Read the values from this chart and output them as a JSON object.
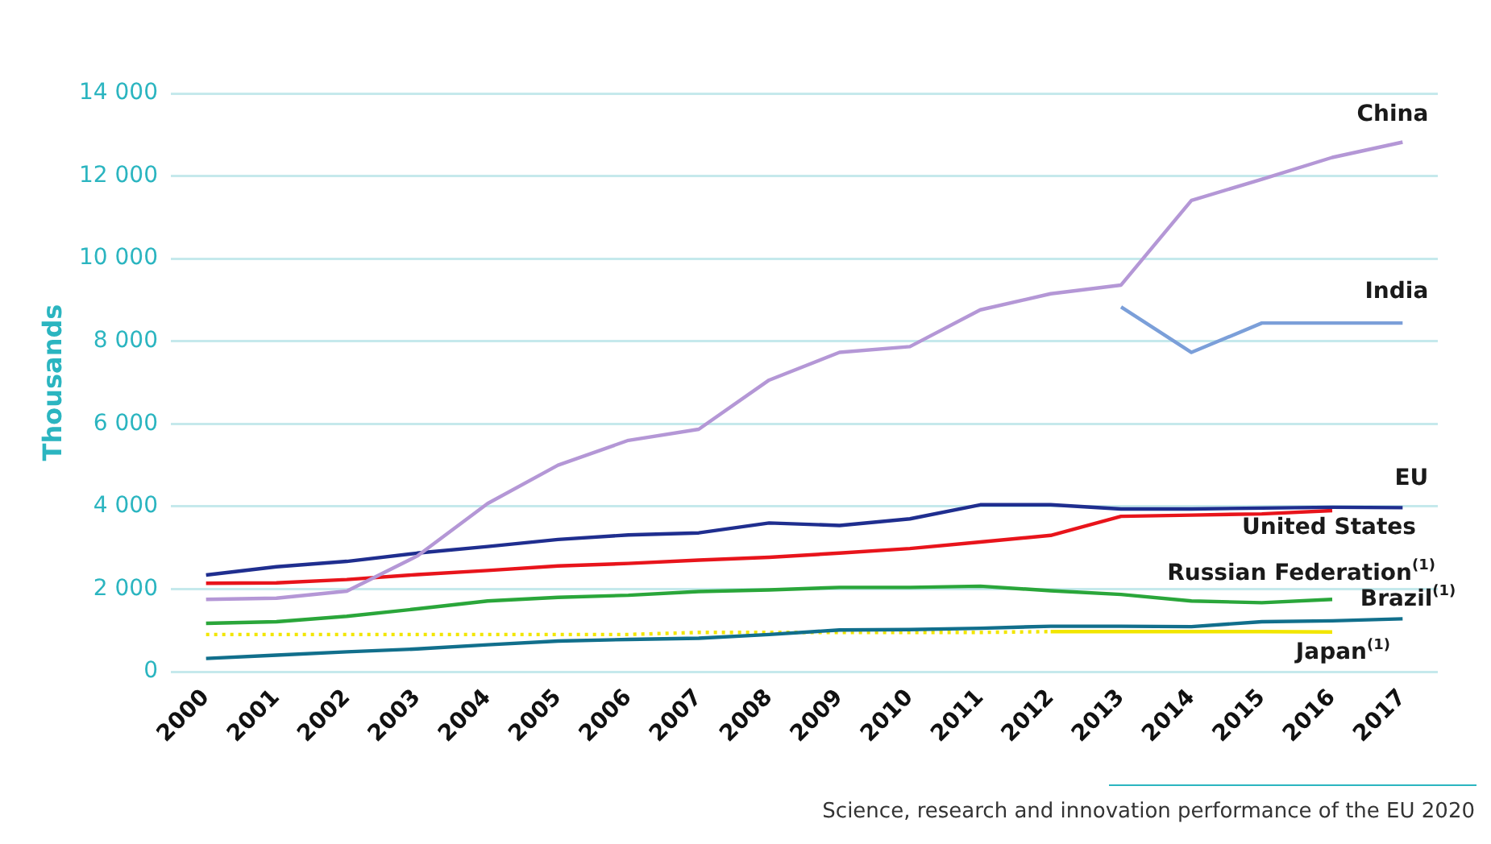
{
  "chart_data": {
    "type": "line",
    "ylabel": "Thousands",
    "categories": [
      "2000",
      "2001",
      "2002",
      "2003",
      "2004",
      "2005",
      "2006",
      "2007",
      "2008",
      "2009",
      "2010",
      "2011",
      "2012",
      "2013",
      "2014",
      "2015",
      "2016",
      "2017"
    ],
    "ylim": [
      0,
      14000
    ],
    "yticks": [
      0,
      {
        "value": 2000,
        "label": "2 000"
      },
      {
        "value": 4000,
        "label": "4 000"
      },
      {
        "value": 6000,
        "label": "6 000"
      },
      {
        "value": 8000,
        "label": "8 000"
      },
      {
        "value": 10000,
        "label": "10 000"
      },
      {
        "value": 12000,
        "label": "12 000"
      },
      {
        "value": 14000,
        "label": "14 000"
      }
    ],
    "grid": "y",
    "legend": false,
    "marker": "none",
    "line_style": "solid",
    "series": [
      {
        "name": "China",
        "color": "#b497d6",
        "values": [
          1750,
          1780,
          1950,
          2800,
          4070,
          5000,
          5600,
          5870,
          7060,
          7730,
          7870,
          8760,
          9150,
          9360,
          11410,
          11920,
          12450,
          12820
        ]
      },
      {
        "name": "India",
        "color": "#7b9fd9",
        "values": [
          null,
          null,
          null,
          null,
          null,
          null,
          null,
          null,
          null,
          null,
          null,
          null,
          null,
          8830,
          7730,
          8440,
          8440,
          8440
        ]
      },
      {
        "name": "EU",
        "color": "#1f2e8f",
        "values": [
          2340,
          2540,
          2670,
          2870,
          3030,
          3200,
          3310,
          3360,
          3600,
          3540,
          3700,
          4040,
          4040,
          3940,
          3940,
          3960,
          3980,
          3970
        ]
      },
      {
        "name": "United States",
        "color": "#e8141b",
        "values": [
          2140,
          2150,
          2230,
          2350,
          2450,
          2560,
          2620,
          2700,
          2770,
          2870,
          2980,
          3140,
          3300,
          3760,
          3790,
          3820,
          3900,
          null
        ]
      },
      {
        "name": "Russian Federation$^{(1)}$",
        "color": "#2aa63a",
        "values": [
          1170,
          1210,
          1340,
          1520,
          1710,
          1800,
          1850,
          1940,
          1980,
          2040,
          2040,
          2070,
          1960,
          1870,
          1710,
          1670,
          1750,
          null
        ]
      },
      {
        "name": "Brazil$^{(1)}$",
        "color": "#116f8c",
        "values": [
          320,
          400,
          480,
          550,
          650,
          740,
          780,
          810,
          900,
          1010,
          1020,
          1050,
          1100,
          1100,
          1090,
          1210,
          1230,
          1280
        ]
      },
      {
        "name": "Japan$^{(1)}$",
        "color": "#f2e600",
        "values": [
          null,
          null,
          null,
          null,
          null,
          null,
          null,
          null,
          null,
          null,
          null,
          null,
          970,
          970,
          970,
          970,
          960,
          null
        ]
      },
      {
        "color": "#f2e600",
        "line_style": "dotted",
        "values": [
          900,
          900,
          900,
          900,
          900,
          900,
          900,
          950,
          950,
          950,
          950,
          950,
          970,
          null,
          null,
          null,
          null,
          null
        ]
      }
    ],
    "annotations": [
      "Science, research and innovation performance of the EU 2020"
    ]
  }
}
